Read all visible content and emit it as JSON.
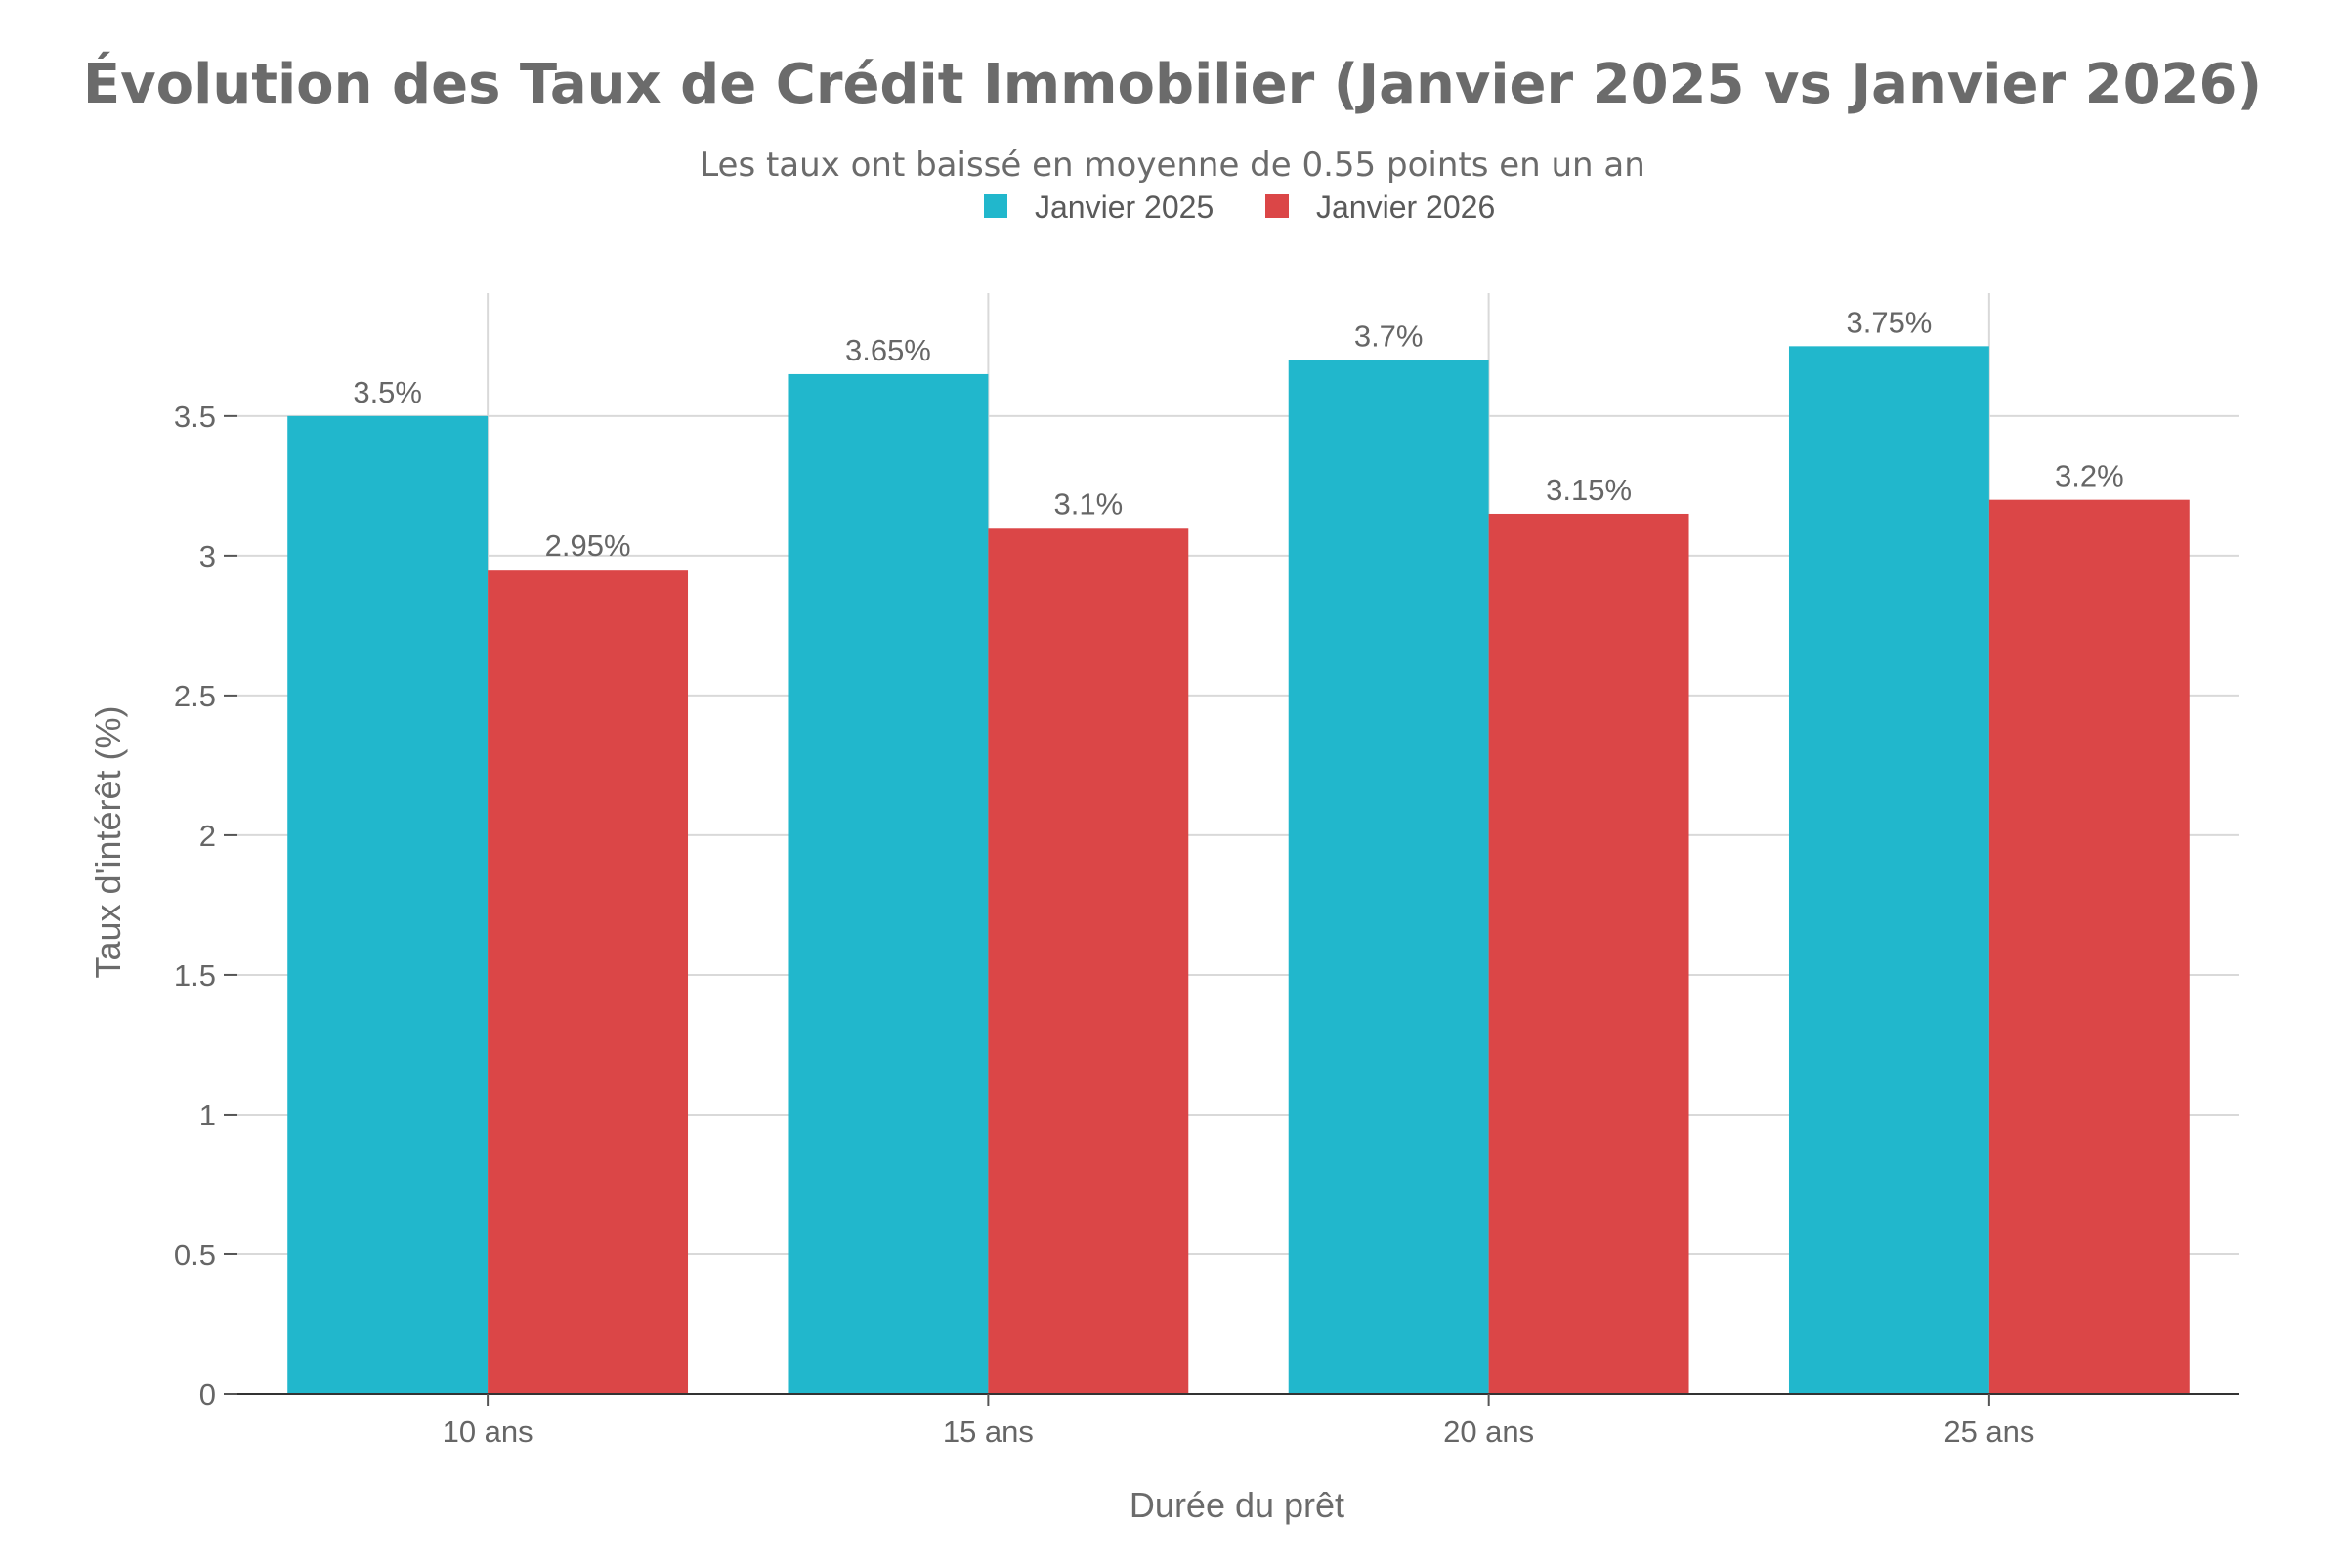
{
  "chart_data": {
    "type": "bar",
    "title": "Évolution des Taux de Crédit Immobilier (Janvier 2025 vs Janvier 2026)",
    "subtitle": "Les taux ont baissé en moyenne de 0.55 points en un an",
    "xlabel": "Durée du prêt",
    "ylabel": "Taux d'intérêt (%)",
    "categories": [
      "10 ans",
      "15 ans",
      "20 ans",
      "25 ans"
    ],
    "series": [
      {
        "name": "Janvier 2025",
        "color": "#21b7cc",
        "values": [
          3.5,
          3.65,
          3.7,
          3.75
        ],
        "labels": [
          "3.5%",
          "3.65%",
          "3.7%",
          "3.75%"
        ]
      },
      {
        "name": "Janvier 2026",
        "color": "#db4647",
        "values": [
          2.95,
          3.1,
          3.15,
          3.2
        ],
        "labels": [
          "2.95%",
          "3.1%",
          "3.15%",
          "3.2%"
        ]
      }
    ],
    "yticks": [
      0,
      0.5,
      1,
      1.5,
      2,
      2.5,
      3,
      3.5
    ],
    "ytick_labels": [
      "0",
      "0.5",
      "1",
      "1.5",
      "2",
      "2.5",
      "3",
      "3.5"
    ],
    "ylim": [
      0,
      3.94
    ],
    "grid": true,
    "legend_position": "top-center"
  }
}
